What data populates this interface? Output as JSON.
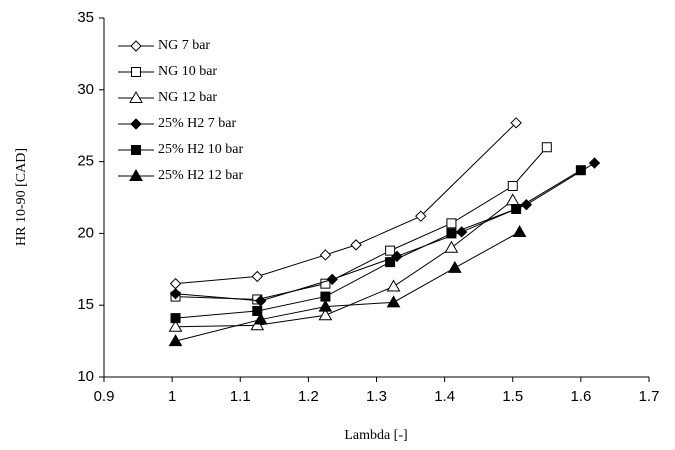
{
  "chart_data": {
    "type": "line",
    "xlabel": "Lambda [-]",
    "ylabel": "HR 10-90 [CAD]",
    "xlim": [
      0.9,
      1.7
    ],
    "xticks": [
      0.9,
      1,
      1.1,
      1.2,
      1.3,
      1.4,
      1.5,
      1.6,
      1.7
    ],
    "ylim": [
      10,
      35
    ],
    "yticks": [
      10,
      15,
      20,
      25,
      30,
      35
    ],
    "grid": false,
    "legend": "upper left",
    "series": [
      {
        "name": "NG 7 bar",
        "color": "#000000",
        "marker": "diamond",
        "filled": false,
        "x": [
          1.005,
          1.125,
          1.225,
          1.27,
          1.365,
          1.505
        ],
        "values": [
          16.5,
          17.0,
          18.5,
          19.2,
          21.2,
          27.7
        ]
      },
      {
        "name": "NG 10 bar",
        "color": "#000000",
        "marker": "square",
        "filled": false,
        "x": [
          1.005,
          1.125,
          1.225,
          1.32,
          1.41,
          1.5,
          1.55
        ],
        "values": [
          15.6,
          15.4,
          16.5,
          18.8,
          20.7,
          23.3,
          26.0
        ]
      },
      {
        "name": "NG 12 bar",
        "color": "#000000",
        "marker": "triangle",
        "filled": false,
        "x": [
          1.005,
          1.125,
          1.225,
          1.325,
          1.41,
          1.5
        ],
        "values": [
          13.5,
          13.6,
          14.3,
          16.3,
          19.0,
          22.3
        ]
      },
      {
        "name": "25% H2 7 bar",
        "color": "#000000",
        "marker": "diamond",
        "filled": true,
        "x": [
          1.005,
          1.13,
          1.235,
          1.33,
          1.425,
          1.52,
          1.62
        ],
        "values": [
          15.8,
          15.3,
          16.8,
          18.4,
          20.1,
          22.0,
          24.9
        ]
      },
      {
        "name": "25% H2 10 bar",
        "color": "#000000",
        "marker": "square",
        "filled": true,
        "x": [
          1.005,
          1.125,
          1.225,
          1.32,
          1.41,
          1.505,
          1.6
        ],
        "values": [
          14.1,
          14.6,
          15.6,
          18.0,
          20.0,
          21.7,
          24.4
        ]
      },
      {
        "name": "25% H2 12 bar",
        "color": "#000000",
        "marker": "triangle",
        "filled": true,
        "x": [
          1.005,
          1.13,
          1.225,
          1.325,
          1.415,
          1.51
        ],
        "values": [
          12.5,
          14.0,
          14.9,
          15.2,
          17.6,
          20.1
        ]
      }
    ]
  }
}
